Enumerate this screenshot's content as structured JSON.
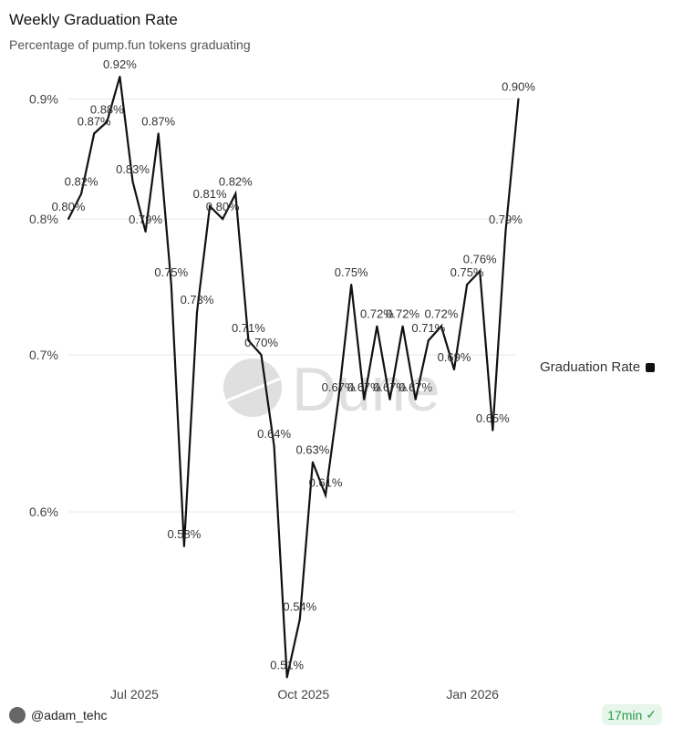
{
  "title": "Weekly Graduation Rate",
  "subtitle": "Percentage of pump.fun tokens graduating",
  "footer": {
    "author": "@adam_tehc",
    "freshness": "17min"
  },
  "chart_data": {
    "type": "line",
    "title": "Weekly Graduation Rate",
    "subtitle": "Percentage of pump.fun tokens graduating",
    "y_scale": "log",
    "ylim": [
      0.51,
      0.92
    ],
    "y_ticks": [
      {
        "v": 0.6,
        "label": "0.6%"
      },
      {
        "v": 0.7,
        "label": "0.7%"
      },
      {
        "v": 0.8,
        "label": "0.8%"
      },
      {
        "v": 0.9,
        "label": "0.9%"
      }
    ],
    "x_ticks": [
      {
        "date": "2025-07-01",
        "label": "Jul 2025"
      },
      {
        "date": "2025-10-01",
        "label": "Oct 2025"
      },
      {
        "date": "2026-01-01",
        "label": "Jan 2026"
      }
    ],
    "grid": true,
    "legend_position": "right",
    "line_color": "#111111",
    "series": [
      {
        "name": "Graduation Rate",
        "start_date": "2025-05-26",
        "values": [
          0.8,
          0.82,
          0.87,
          0.88,
          0.92,
          0.83,
          0.79,
          0.87,
          0.75,
          0.58,
          0.73,
          0.81,
          0.8,
          0.82,
          0.71,
          0.7,
          0.64,
          0.51,
          0.54,
          0.63,
          0.61,
          0.67,
          0.75,
          0.67,
          0.72,
          0.67,
          0.72,
          0.67,
          0.71,
          0.72,
          0.69,
          0.75,
          0.76,
          0.65,
          0.79,
          0.9
        ]
      }
    ]
  }
}
